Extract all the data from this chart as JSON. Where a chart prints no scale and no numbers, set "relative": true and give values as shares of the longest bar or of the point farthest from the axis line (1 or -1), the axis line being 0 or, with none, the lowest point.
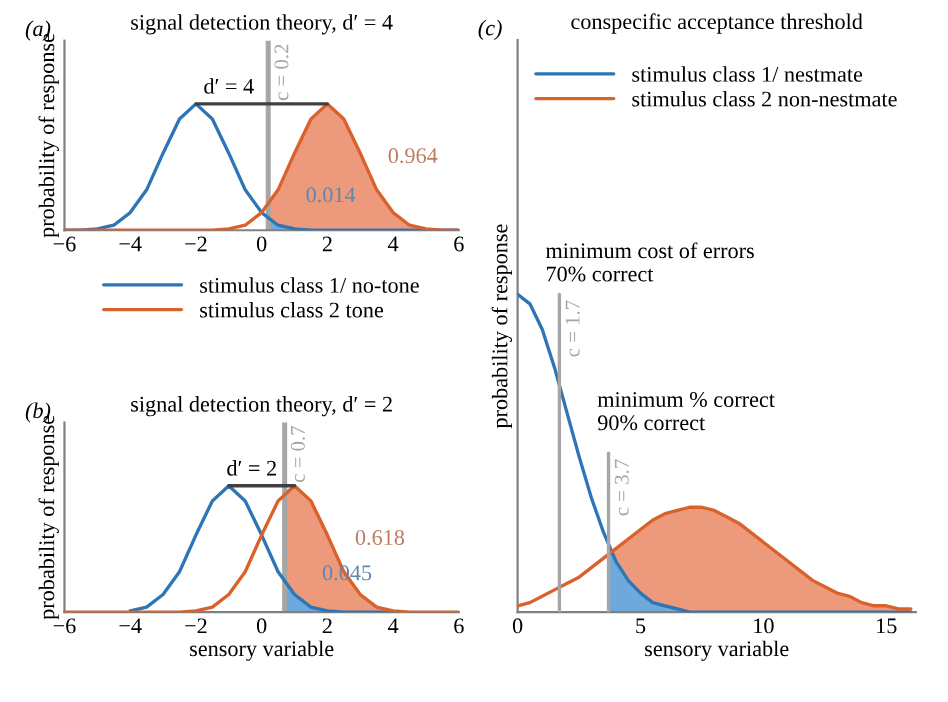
{
  "chart_data": [
    {
      "type": "line",
      "title": "signal detection theory, d′ = 4",
      "ylabel": "probability of response",
      "relative": true,
      "legend": "bottom",
      "xlim": [
        -6,
        6
      ],
      "xticks": [
        {
          "value": -6,
          "label": "−6"
        },
        {
          "value": -4,
          "label": "−4"
        },
        {
          "value": -2,
          "label": "−2"
        },
        0,
        2,
        4,
        6
      ],
      "x": [
        -6,
        -5.5,
        -5,
        -4.5,
        -4,
        -3.5,
        -3,
        -2.5,
        -2,
        -1.5,
        -1,
        -0.5,
        0,
        0.5,
        1,
        1.5,
        2,
        2.5,
        3,
        3.5,
        4,
        4.5,
        5,
        5.5,
        6
      ],
      "series": [
        {
          "type": "area",
          "color": "#ec9a7b",
          "x": [
            0.2,
            0.5,
            1,
            1.5,
            2,
            2.5,
            3,
            3.5,
            4,
            4.5,
            5,
            5.5,
            6
          ],
          "values": [
            0.2,
            0.32,
            0.61,
            0.88,
            1,
            0.88,
            0.61,
            0.32,
            0.14,
            0.04,
            0.01,
            0,
            0
          ]
        },
        {
          "type": "area",
          "color": "#6fa9dc",
          "x": [
            0.2,
            0.5,
            1,
            1.5,
            2,
            2.5,
            3,
            3.5,
            4,
            4.5,
            5,
            5.5,
            6
          ],
          "values": [
            0.09,
            0.04,
            0.01,
            0,
            0,
            0,
            0,
            0,
            0,
            0,
            0,
            0,
            0
          ]
        },
        {
          "name": "stimulus class 1/ no-tone",
          "color": "#2e75b6",
          "values": [
            0,
            0,
            0.01,
            0.04,
            0.14,
            0.32,
            0.61,
            0.88,
            1,
            0.88,
            0.61,
            0.32,
            0.14,
            0.04,
            0.01,
            0,
            0,
            0,
            0,
            0,
            0,
            0,
            0,
            0,
            0
          ]
        },
        {
          "name": "stimulus class 2 tone",
          "color": "#d9622b",
          "values": [
            0,
            0,
            0,
            0,
            0,
            0,
            0,
            0,
            0,
            0,
            0.01,
            0.04,
            0.14,
            0.32,
            0.61,
            0.88,
            1,
            0.88,
            0.61,
            0.32,
            0.14,
            0.04,
            0.01,
            0,
            0
          ]
        },
        {
          "color": "#404040",
          "x": [
            -2,
            2
          ],
          "values": [
            1,
            1
          ]
        }
      ],
      "ref_lines": [
        {
          "axis": "x",
          "value": 0.2,
          "label": "c = 0.2",
          "color": "#a6a6a6"
        }
      ],
      "annotations": [
        "(a)",
        {
          "text": "d′ = 4",
          "x": -1,
          "y": 1
        },
        {
          "text": "0.964",
          "x": 3.5,
          "y": 0.32
        },
        {
          "text": "0.014",
          "x": 1,
          "y": 0.01
        }
      ]
    },
    {
      "type": "line",
      "title": "signal detection theory, d′ = 2",
      "xlabel": "sensory variable",
      "ylabel": "probability of response",
      "relative": true,
      "xlim": [
        -6,
        6
      ],
      "xticks": [
        {
          "value": -6,
          "label": "−6"
        },
        {
          "value": -4,
          "label": "−4"
        },
        {
          "value": -2,
          "label": "−2"
        },
        0,
        2,
        4,
        6
      ],
      "x": [
        -6,
        -5.5,
        -5,
        -4.5,
        -4,
        -3.5,
        -3,
        -2.5,
        -2,
        -1.5,
        -1,
        -0.5,
        0,
        0.5,
        1,
        1.5,
        2,
        2.5,
        3,
        3.5,
        4,
        4.5,
        5,
        5.5,
        6
      ],
      "series": [
        {
          "type": "area",
          "color": "#ec9a7b",
          "x": [
            0.7,
            1,
            1.5,
            2,
            2.5,
            3,
            3.5,
            4,
            4.5,
            5,
            5.5,
            6
          ],
          "values": [
            0.96,
            1,
            0.88,
            0.61,
            0.32,
            0.14,
            0.04,
            0.01,
            0,
            0,
            0,
            0
          ]
        },
        {
          "type": "area",
          "color": "#6fa9dc",
          "x": [
            0.7,
            1,
            1.5,
            2,
            2.5,
            3,
            3.5,
            4,
            4.5,
            5,
            5.5,
            6
          ],
          "values": [
            0.24,
            0.14,
            0.04,
            0.01,
            0,
            0,
            0,
            0,
            0,
            0,
            0,
            0
          ]
        },
        {
          "color": "#2e75b6",
          "values": [
            null,
            null,
            null,
            null,
            0.01,
            0.04,
            0.14,
            0.32,
            0.61,
            0.88,
            1,
            0.88,
            0.61,
            0.32,
            0.14,
            0.04,
            0.01,
            0,
            0,
            0,
            0,
            null,
            null,
            null,
            null
          ]
        },
        {
          "color": "#d9622b",
          "values": [
            0,
            0,
            0,
            0,
            0,
            0,
            0,
            0,
            0.01,
            0.04,
            0.14,
            0.32,
            0.61,
            0.88,
            1,
            0.88,
            0.61,
            0.32,
            0.14,
            0.04,
            0.01,
            0,
            0,
            0,
            0
          ]
        },
        {
          "color": "#404040",
          "x": [
            -1,
            1
          ],
          "values": [
            1,
            1
          ]
        }
      ],
      "ref_lines": [
        {
          "axis": "x",
          "value": 0.7,
          "label": "c = 0.7",
          "color": "#a6a6a6"
        }
      ],
      "annotations": [
        "(b)",
        {
          "text": "d′ = 2",
          "x": -0.3,
          "y": 1
        },
        {
          "text": "0.618",
          "x": 2.5,
          "y": 0.32
        },
        {
          "text": "0.045",
          "x": 1.5,
          "y": 0.04
        }
      ]
    },
    {
      "type": "line",
      "title": "conspecific acceptance threshold",
      "xlabel": "sensory variable",
      "ylabel": "probability of response",
      "relative": true,
      "legend": "top",
      "xlim": [
        0,
        16.2
      ],
      "xticks": [
        0,
        5,
        10,
        15
      ],
      "x": [
        0,
        0.5,
        1,
        1.5,
        2,
        2.5,
        3,
        3.5,
        4,
        4.5,
        5,
        5.5,
        6,
        6.5,
        7,
        7.5,
        8,
        8.5,
        9,
        9.5,
        10,
        10.5,
        11,
        11.5,
        12,
        12.5,
        13,
        13.5,
        14,
        14.5,
        15,
        15.5,
        16
      ],
      "series": [
        {
          "type": "area",
          "color": "#ec9a7b",
          "x": [
            3.7,
            4,
            4.5,
            5,
            5.5,
            6,
            6.5,
            7,
            7.5,
            8,
            8.5,
            9,
            9.5,
            10,
            10.5,
            11,
            11.5,
            12,
            12.5,
            13,
            13.5,
            14,
            14.5,
            15,
            15.5,
            16
          ],
          "values": [
            0.18,
            0.2,
            0.23,
            0.26,
            0.29,
            0.31,
            0.32,
            0.33,
            0.33,
            0.32,
            0.3,
            0.28,
            0.25,
            0.22,
            0.19,
            0.16,
            0.13,
            0.1,
            0.08,
            0.06,
            0.05,
            0.03,
            0.02,
            0.02,
            0.01,
            0.01
          ]
        },
        {
          "type": "area",
          "color": "#6fa9dc",
          "x": [
            3.7,
            4,
            4.5,
            5,
            5.5,
            6,
            6.5,
            7
          ],
          "values": [
            0.2,
            0.16,
            0.1,
            0.06,
            0.03,
            0.02,
            0.01,
            0
          ]
        },
        {
          "name": "stimulus class 1/ nestmate",
          "color": "#2e75b6",
          "values": [
            1,
            0.97,
            0.89,
            0.77,
            0.63,
            0.49,
            0.36,
            0.25,
            0.16,
            0.1,
            0.06,
            0.03,
            0.02,
            0.01,
            0,
            0,
            0,
            0,
            0,
            0,
            0,
            0,
            0,
            0,
            0,
            0,
            0,
            0,
            0,
            0,
            0,
            0,
            0
          ]
        },
        {
          "name": "stimulus class 2 non-nestmate",
          "color": "#d9622b",
          "values": [
            0.02,
            0.03,
            0.05,
            0.07,
            0.09,
            0.11,
            0.14,
            0.17,
            0.2,
            0.23,
            0.26,
            0.29,
            0.31,
            0.32,
            0.33,
            0.33,
            0.32,
            0.3,
            0.28,
            0.25,
            0.22,
            0.19,
            0.16,
            0.13,
            0.1,
            0.08,
            0.06,
            0.05,
            0.03,
            0.02,
            0.02,
            0.01,
            0.01
          ]
        },
        {
          "color": "#a6a6a6",
          "x": [
            1.7,
            1.7
          ],
          "values": [
            0,
            1
          ]
        },
        {
          "color": "#a6a6a6",
          "x": [
            3.7,
            3.7
          ],
          "values": [
            0,
            0.5
          ]
        }
      ],
      "annotations": [
        "(c)",
        "minimum cost of errors\n70% correct",
        "minimum % correct\n90% correct",
        {
          "text": "c = 1.7",
          "x": 1.7,
          "y": 1
        },
        {
          "text": "c = 3.7",
          "x": 3.7,
          "y": 0.5
        }
      ]
    }
  ]
}
